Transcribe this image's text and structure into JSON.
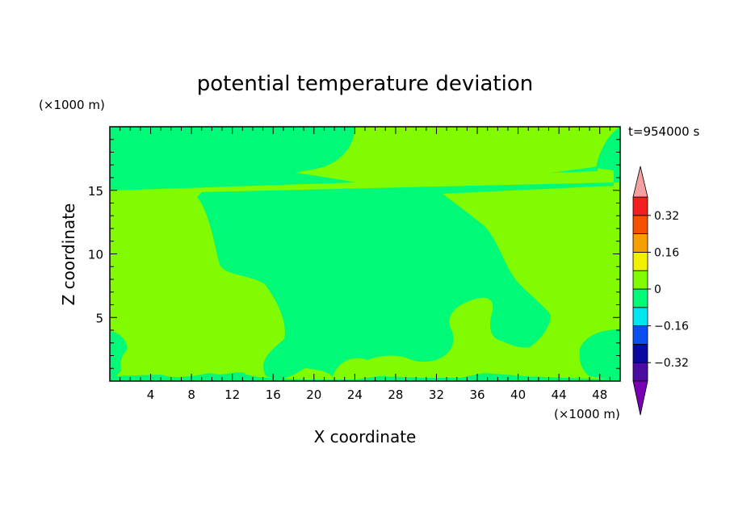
{
  "chart_data": {
    "type": "heatmap",
    "title": "potential temperature deviation",
    "xlabel": "X coordinate",
    "ylabel": "Z coordinate",
    "x_unit": "(×1000 m)",
    "y_unit": "(×1000 m)",
    "time_label": "t=954000 s",
    "xlim": [
      0,
      50
    ],
    "ylim": [
      0,
      20
    ],
    "x_ticks": [
      4,
      8,
      12,
      16,
      20,
      24,
      28,
      32,
      36,
      40,
      44,
      48
    ],
    "y_ticks": [
      5,
      10,
      15
    ],
    "colorbar": {
      "levels": [
        -0.4,
        -0.32,
        -0.24,
        -0.16,
        -0.08,
        0,
        0.08,
        0.16,
        0.24,
        0.32,
        0.4
      ],
      "labels": [
        {
          "value": 0.32,
          "text": "0.32"
        },
        {
          "value": 0.16,
          "text": "0.16"
        },
        {
          "value": 0,
          "text": "0"
        },
        {
          "value": -0.16,
          "text": "−0.16"
        },
        {
          "value": -0.32,
          "text": "−0.32"
        }
      ],
      "colors": [
        "#4b0ca0",
        "#0a0aa0",
        "#0a50f0",
        "#00e6f0",
        "#00fa78",
        "#82fa00",
        "#f0f000",
        "#f5a000",
        "#f55000",
        "#f51e1e"
      ],
      "under_color": "#7800b4",
      "over_color": "#f5a0a0"
    },
    "regions": [
      {
        "level": "-0.08 to 0",
        "color": "#00fa78"
      },
      {
        "level": "0 to 0.08",
        "color": "#82fa00"
      }
    ]
  }
}
